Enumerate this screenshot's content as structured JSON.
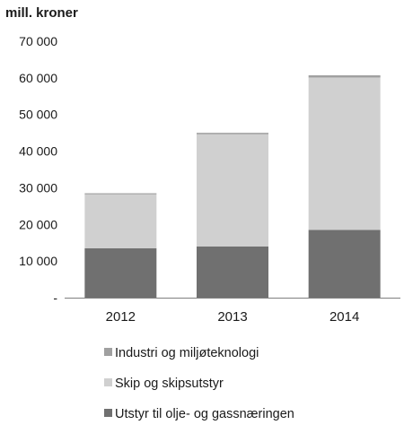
{
  "chart_data": {
    "type": "bar",
    "stacked": true,
    "title": "",
    "unit_label": "mill. kroner",
    "xlabel": "",
    "ylabel": "",
    "categories": [
      "2012",
      "2013",
      "2014"
    ],
    "ylim": [
      0,
      70000
    ],
    "ytick_values": [
      0,
      10000,
      20000,
      30000,
      40000,
      50000,
      60000,
      70000
    ],
    "ytick_labels": [
      "-",
      "10 000",
      "20 000",
      "30 000",
      "40 000",
      "50 000",
      "60 000",
      "70 000"
    ],
    "grid": false,
    "legend_position": "bottom",
    "series": [
      {
        "name": "Utstyr til olje- og gassnæringen",
        "color": "#707070",
        "values": [
          13500,
          14000,
          18500
        ]
      },
      {
        "name": "Skip og skipsutstyr",
        "color": "#d0d0d0",
        "values": [
          14700,
          30600,
          41600
        ]
      },
      {
        "name": "Industri og miljøteknologi",
        "color": "#a0a0a0",
        "values": [
          300,
          400,
          600
        ]
      }
    ],
    "legend_order": [
      2,
      1,
      0
    ]
  }
}
